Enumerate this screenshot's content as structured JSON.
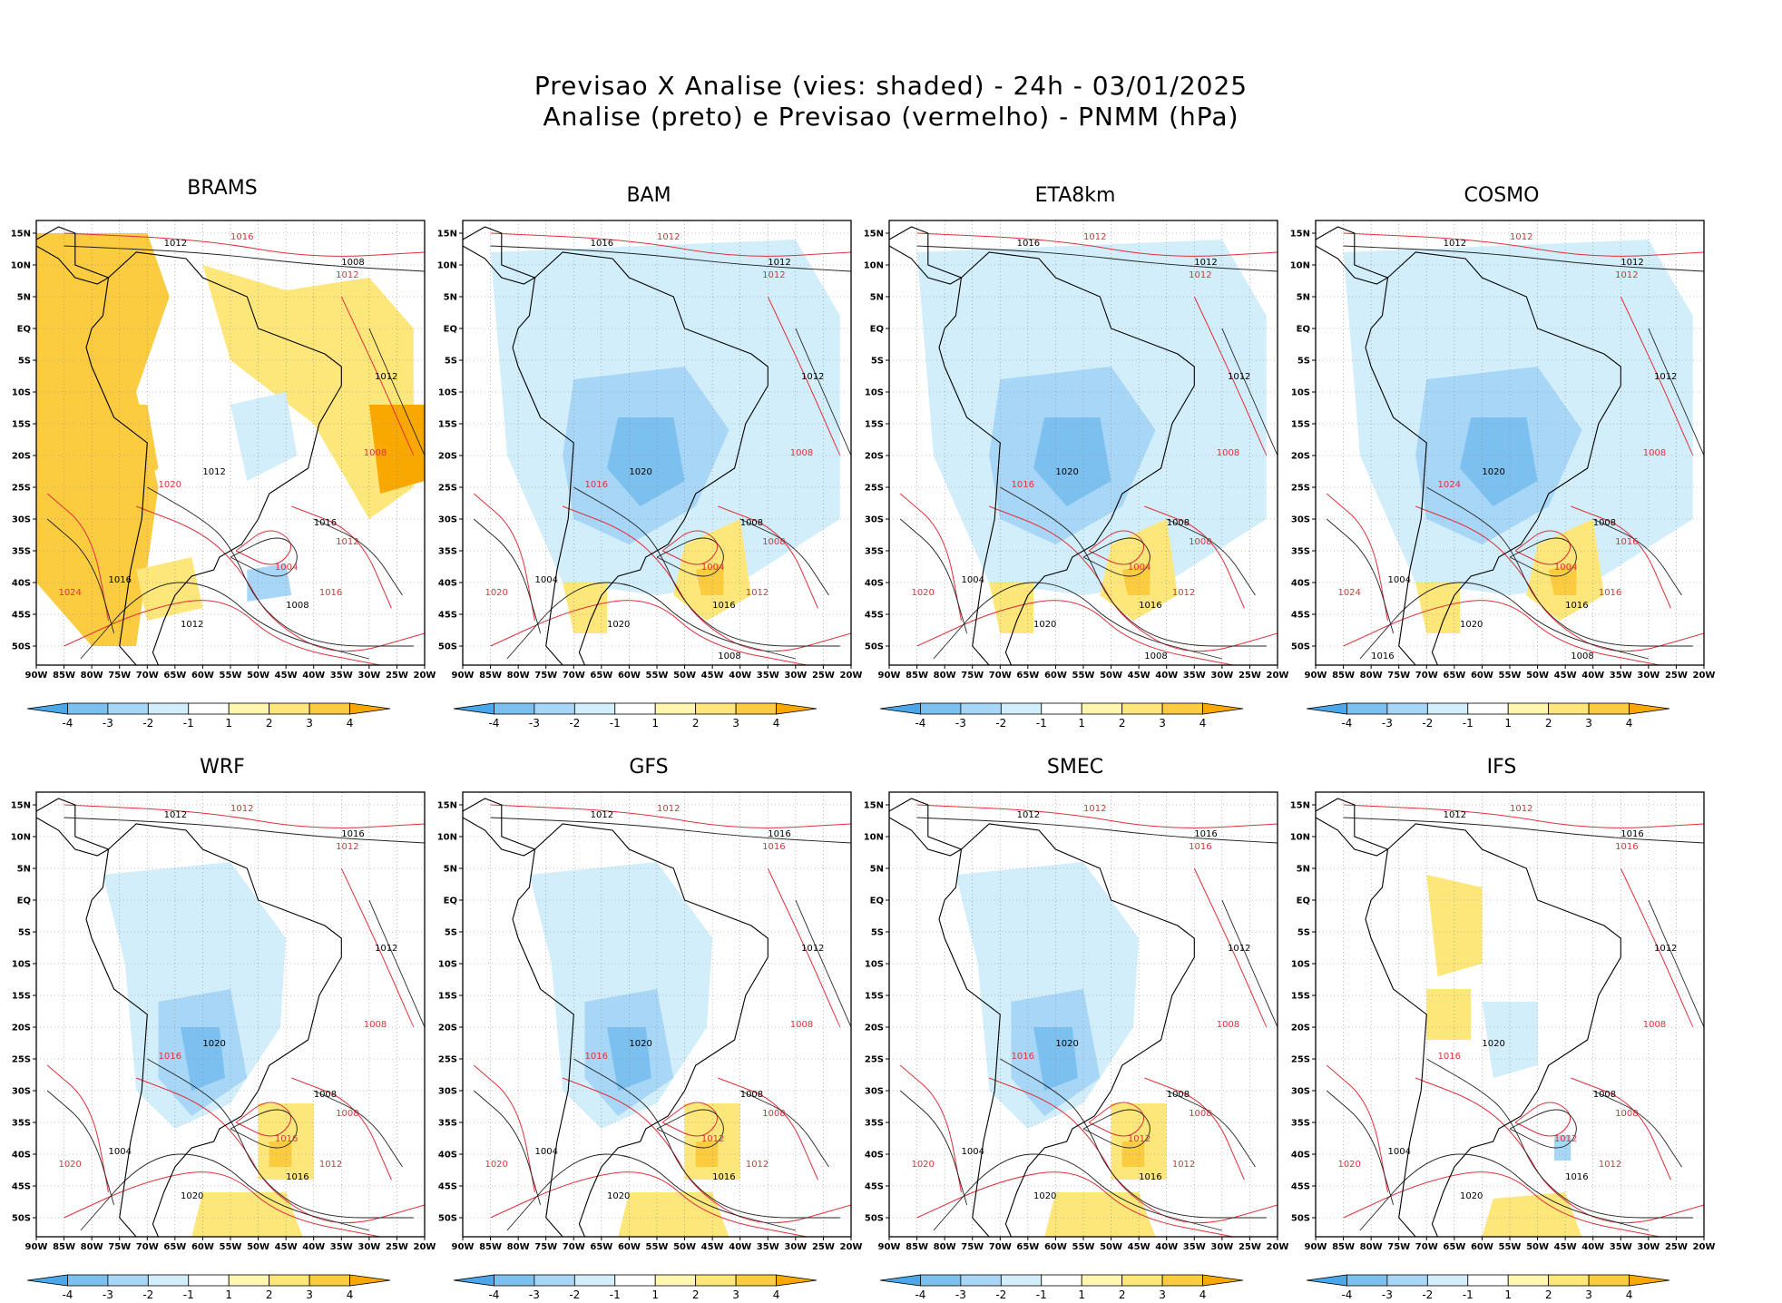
{
  "title_line1": "Previsao X Analise (vies: shaded) - 24h - 03/01/2025",
  "title_line2": "Analise (preto) e Previsao (vermelho) - PNMM (hPa)",
  "lat_labels": [
    "15N",
    "10N",
    "5N",
    "EQ",
    "5S",
    "10S",
    "15S",
    "20S",
    "25S",
    "30S",
    "35S",
    "40S",
    "45S",
    "50S"
  ],
  "lon_labels": [
    "90W",
    "85W",
    "80W",
    "75W",
    "70W",
    "65W",
    "60W",
    "55W",
    "50W",
    "45W",
    "40W",
    "35W",
    "30W",
    "25W",
    "20W"
  ],
  "colorbar": {
    "labels": [
      "-4",
      "-3",
      "-2",
      "-1",
      "1",
      "2",
      "3",
      "4"
    ],
    "colors": [
      "#4aa8ea",
      "#7cc0f0",
      "#a8d6f6",
      "#d2eefa",
      "#ffffff",
      "#fff6b0",
      "#fde67a",
      "#fbcc40",
      "#f8a800"
    ]
  },
  "panels": [
    {
      "name": "BRAMS",
      "bias": "warm",
      "iso_black": [
        "1012",
        "1008",
        "1012",
        "1016",
        "1008",
        "1012",
        "1016",
        "1012"
      ],
      "iso_red": [
        "1016",
        "1012",
        "1008",
        "1012",
        "1016",
        "1020",
        "1024",
        "1004"
      ]
    },
    {
      "name": "BAM",
      "bias": "cold",
      "iso_black": [
        "1016",
        "1012",
        "1012",
        "1008",
        "1016",
        "1020",
        "1004",
        "1020",
        "1008"
      ],
      "iso_red": [
        "1012",
        "1012",
        "1008",
        "1008",
        "1012",
        "1016",
        "1020",
        "1004"
      ]
    },
    {
      "name": "ETA8km",
      "bias": "cold",
      "iso_black": [
        "1016",
        "1012",
        "1012",
        "1008",
        "1016",
        "1020",
        "1004",
        "1020",
        "1008"
      ],
      "iso_red": [
        "1012",
        "1012",
        "1008",
        "1008",
        "1012",
        "1016",
        "1020",
        "1004"
      ]
    },
    {
      "name": "COSMO",
      "bias": "cold",
      "iso_black": [
        "1012",
        "1012",
        "1012",
        "1008",
        "1016",
        "1020",
        "1004",
        "1020",
        "1008",
        "1016"
      ],
      "iso_red": [
        "1012",
        "1012",
        "1008",
        "1016",
        "1016",
        "1024",
        "1024",
        "1004"
      ]
    },
    {
      "name": "WRF",
      "bias": "mixed",
      "iso_black": [
        "1012",
        "1016",
        "1012",
        "1008",
        "1016",
        "1020",
        "1004",
        "1020"
      ],
      "iso_red": [
        "1012",
        "1012",
        "1008",
        "1008",
        "1012",
        "1016",
        "1020",
        "1016"
      ]
    },
    {
      "name": "GFS",
      "bias": "mixed",
      "iso_black": [
        "1012",
        "1016",
        "1012",
        "1008",
        "1016",
        "1020",
        "1004",
        "1020"
      ],
      "iso_red": [
        "1012",
        "1016",
        "1008",
        "1008",
        "1012",
        "1016",
        "1020",
        "1012"
      ]
    },
    {
      "name": "SMEC",
      "bias": "mixed",
      "iso_black": [
        "1012",
        "1016",
        "1012",
        "1008",
        "1016",
        "1020",
        "1004",
        "1020"
      ],
      "iso_red": [
        "1012",
        "1016",
        "1008",
        "1008",
        "1012",
        "1016",
        "1020",
        "1012"
      ]
    },
    {
      "name": "IFS",
      "bias": "light",
      "iso_black": [
        "1012",
        "1016",
        "1012",
        "1008",
        "1016",
        "1020",
        "1004",
        "1020"
      ],
      "iso_red": [
        "1012",
        "1016",
        "1008",
        "1008",
        "1012",
        "1016",
        "1020",
        "1012"
      ]
    }
  ]
}
